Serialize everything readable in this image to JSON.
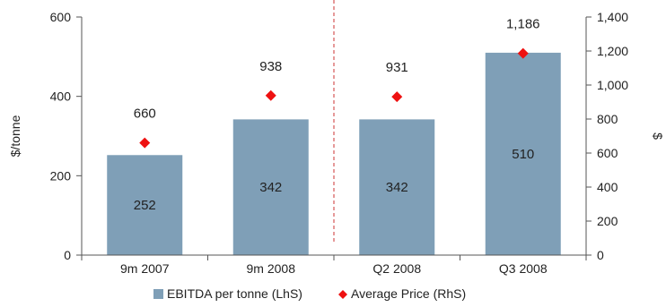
{
  "chart_data": {
    "type": "bar",
    "categories": [
      "9m 2007",
      "9m 2008",
      "Q2 2008",
      "Q3 2008"
    ],
    "series": [
      {
        "name": "EBITDA per tonne (LhS)",
        "kind": "bar",
        "axis": "left",
        "color": "#7f9fb7",
        "values": [
          252,
          342,
          342,
          510
        ]
      },
      {
        "name": "Average Price (RhS)",
        "kind": "marker",
        "marker": "diamond",
        "axis": "right",
        "color": "#ee1111",
        "values": [
          660,
          938,
          931,
          1186
        ],
        "labels": [
          "660",
          "938",
          "931",
          "1,186"
        ]
      }
    ],
    "left_axis": {
      "label": "$/tonne",
      "ylim": [
        0,
        600
      ],
      "ticks": [
        0,
        200,
        400,
        600
      ]
    },
    "right_axis": {
      "label": "$",
      "ylim": [
        0,
        1400
      ],
      "ticks": [
        0,
        200,
        400,
        600,
        800,
        1000,
        1200,
        1400
      ],
      "tick_labels": [
        "0",
        "200",
        "400",
        "600",
        "800",
        "1,000",
        "1,200",
        "1,400"
      ]
    },
    "divider": {
      "after_category": 1,
      "style": "dashed",
      "color": "#cc3333"
    },
    "grid": false,
    "legend_position": "bottom"
  }
}
